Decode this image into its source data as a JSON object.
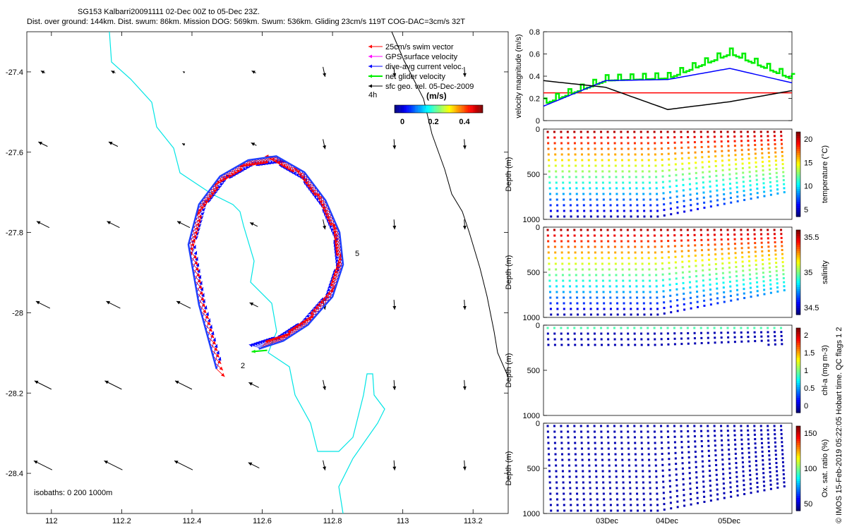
{
  "header": {
    "line1": "SG153 Kalbarri20091111 02-Dec 00Z to 05-Dec 23Z.",
    "line2": "Dist. over ground: 144km. Dist. swum: 86km. Mission DOG: 569km. Swum: 536km. Gliding 23cm/s 119T COG-DAC=3cm/s 32T"
  },
  "colors": {
    "coast": "#00e5e5",
    "isobath": "#000000",
    "swim": "#ff0000",
    "gps": "#ff00ff",
    "dac": "#0000ff",
    "net": "#00ee00",
    "geo": "#000000"
  },
  "map": {
    "xticks": [
      "112",
      "112.2",
      "112.4",
      "112.6",
      "112.8",
      "113",
      "113.2"
    ],
    "yticks": [
      "-27.4",
      "-27.6",
      "-27.8",
      "-28",
      "-28.2",
      "-28.4"
    ],
    "legend": [
      {
        "label": "25cm/s swim vector",
        "color": "#ff0000"
      },
      {
        "label": "GPS surface velocity",
        "color": "#ff00ff"
      },
      {
        "label": "dive-avg current veloc.",
        "color": "#0000ff"
      },
      {
        "label": "net glider velocity",
        "color": "#00ee00"
      },
      {
        "label": "sfc geo. vel. 05-Dec-2009",
        "color": "#000000"
      }
    ],
    "interval_label": "4h",
    "colorbar_title": "(m/s)",
    "colorbar_ticks": [
      "0",
      "0.2",
      "0.4"
    ],
    "isobath_note": "isobaths: 0   200  1000m",
    "day_labels": [
      "2",
      "5"
    ]
  },
  "velocity_panel": {
    "ylabel": "velocity magnitude (m/s)",
    "yticks": [
      "0",
      "0.2",
      "0.4",
      "0.6",
      "0.8"
    ],
    "reference_line": 0.25
  },
  "profile_panels": [
    {
      "name": "temperature",
      "cbar_label": "temperature (°C)",
      "cbar_ticks": [
        "5",
        "10",
        "15",
        "20"
      ],
      "ylabel": "Depth (m)",
      "yticks": [
        "0",
        "500",
        "1000"
      ]
    },
    {
      "name": "salinity",
      "cbar_label": "salinity",
      "cbar_ticks": [
        "34.5",
        "35",
        "35.5"
      ],
      "ylabel": "Depth (m)",
      "yticks": [
        "0",
        "500",
        "1000"
      ]
    },
    {
      "name": "chla",
      "cbar_label": "chl-a (mg m-3)",
      "cbar_ticks": [
        "0",
        "0.5",
        "1",
        "1.5",
        "2"
      ],
      "ylabel": "Depth (m)",
      "yticks": [
        "0",
        "500",
        "1000"
      ]
    },
    {
      "name": "oxygen",
      "cbar_label": "Ox. sat. ratio (%)",
      "cbar_ticks": [
        "50",
        "100",
        "150"
      ],
      "ylabel": "Depth (m)",
      "yticks": [
        "0",
        "500",
        "1000"
      ]
    }
  ],
  "time_ticks": [
    "03Dec",
    "04Dec",
    "05Dec"
  ],
  "footer": "© IMOS 15-Feb-2019 05:22:05 Hobart time. QC flags 1  2",
  "chart_data": [
    {
      "type": "line",
      "title": "",
      "xlabel": "",
      "ylabel": "velocity magnitude (m/s)",
      "ylim": [
        0,
        0.8
      ],
      "x": [
        "02Dec 00Z",
        "03Dec 00Z",
        "04Dec 00Z",
        "05Dec 00Z",
        "05Dec 23Z"
      ],
      "series": [
        {
          "name": "",
          "color": "#00ee00",
          "values": [
            0.15,
            0.36,
            0.38,
            0.6,
            0.37
          ]
        },
        {
          "name": "",
          "color": "#0000ff",
          "values": [
            0.13,
            0.36,
            0.37,
            0.47,
            0.34
          ]
        },
        {
          "name": "",
          "color": "#000000",
          "values": [
            0.36,
            0.3,
            0.1,
            0.17,
            0.27
          ]
        },
        {
          "name": "",
          "color": "#ff0000",
          "values": [
            0.25,
            0.25,
            0.25,
            0.25,
            0.25
          ]
        }
      ],
      "grid": false
    },
    {
      "type": "scatter",
      "title": "",
      "xlabel": "",
      "ylabel": "",
      "xlim": [
        111.93,
        113.3
      ],
      "ylim": [
        -28.5,
        -27.3
      ],
      "series": [
        {
          "name": "",
          "x": [
            112.47,
            112.42,
            112.39,
            112.42,
            112.48,
            112.56,
            112.64,
            112.72,
            112.78,
            112.82,
            112.83,
            112.8,
            112.73,
            112.66,
            112.59
          ],
          "y": [
            -28.14,
            -27.98,
            -27.83,
            -27.73,
            -27.66,
            -27.62,
            -27.61,
            -27.65,
            -27.72,
            -27.8,
            -27.88,
            -27.96,
            -28.03,
            -28.07,
            -28.09
          ]
        }
      ],
      "grid": false
    }
  ]
}
